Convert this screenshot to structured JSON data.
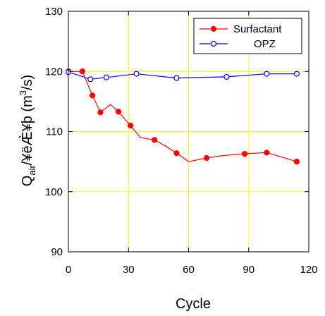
{
  "chart_data": {
    "type": "line",
    "xlabel": "Cycle",
    "ylabel": {
      "main": "Q",
      "sub": "air",
      "after_sub": "/¥ëÆ̀¥þ (m",
      "sup": "3",
      "end": "/s)"
    },
    "xlim": [
      0,
      120
    ],
    "ylim": [
      90,
      130
    ],
    "xticks": [
      "0",
      "30",
      "60",
      "90",
      "120"
    ],
    "yticks": [
      "90",
      "100",
      "110",
      "120",
      "130"
    ],
    "grid": true,
    "grid_color": "#ffff00",
    "legend_position": "top-right",
    "series": [
      {
        "name": "Surfactant",
        "color": "#ff0000",
        "marker": "filled-circle",
        "x": [
          0,
          7,
          12,
          16,
          21,
          25,
          31,
          36,
          43,
          49,
          54,
          60,
          69,
          77,
          88,
          99,
          114
        ],
        "y": [
          120,
          120,
          116,
          113.2,
          114.5,
          113.3,
          111,
          109,
          108.6,
          107.5,
          106.4,
          105,
          105.6,
          106,
          106.3,
          106.5,
          105
        ],
        "marked": [
          true,
          true,
          true,
          true,
          false,
          true,
          true,
          false,
          true,
          false,
          true,
          false,
          true,
          false,
          true,
          true,
          true
        ]
      },
      {
        "name": "OPZ",
        "color": "#0000ff",
        "marker": "open-circle",
        "x": [
          0,
          11,
          19,
          34,
          54,
          79,
          99,
          114
        ],
        "y": [
          119.9,
          118.7,
          119,
          119.6,
          118.9,
          119.1,
          119.6,
          119.6
        ],
        "marked": [
          true,
          true,
          true,
          true,
          true,
          true,
          true,
          true
        ]
      }
    ]
  }
}
